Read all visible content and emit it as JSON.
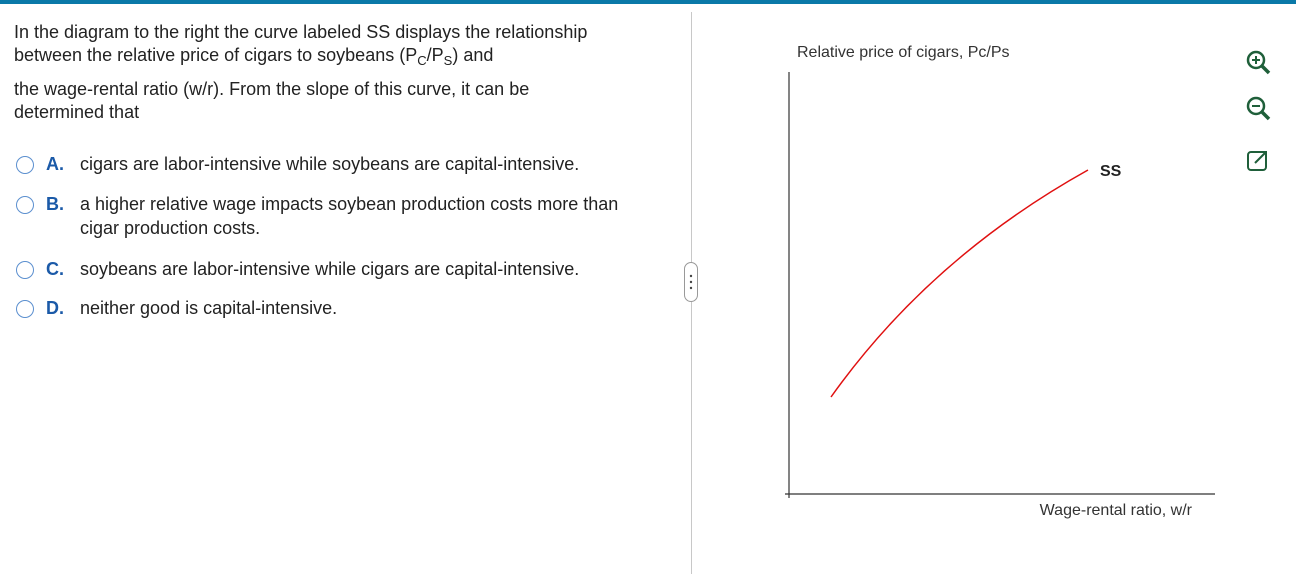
{
  "question": {
    "part1": "In the diagram to the right the curve labeled SS displays the relationship between the relative price of cigars to soybeans (",
    "p1": "P",
    "sub1": "C",
    "slash": "/",
    "p2": "P",
    "sub2": "S",
    "part2": ") and",
    "part3": "the wage-rental ratio (w/r). From the slope of this curve, it can be determined that"
  },
  "options": [
    {
      "letter": "A.",
      "text": "cigars are labor-intensive while soybeans are capital-intensive."
    },
    {
      "letter": "B.",
      "text": "a higher relative wage impacts soybean production costs more than cigar production costs."
    },
    {
      "letter": "C.",
      "text": "soybeans are labor-intensive while cigars are capital-intensive."
    },
    {
      "letter": "D.",
      "text": "neither good is capital-intensive."
    }
  ],
  "diagram": {
    "y_label": "Relative price of cigars, Pc/Ps",
    "x_label": "Wage-rental ratio, w/r",
    "curve_label": "SS"
  }
}
